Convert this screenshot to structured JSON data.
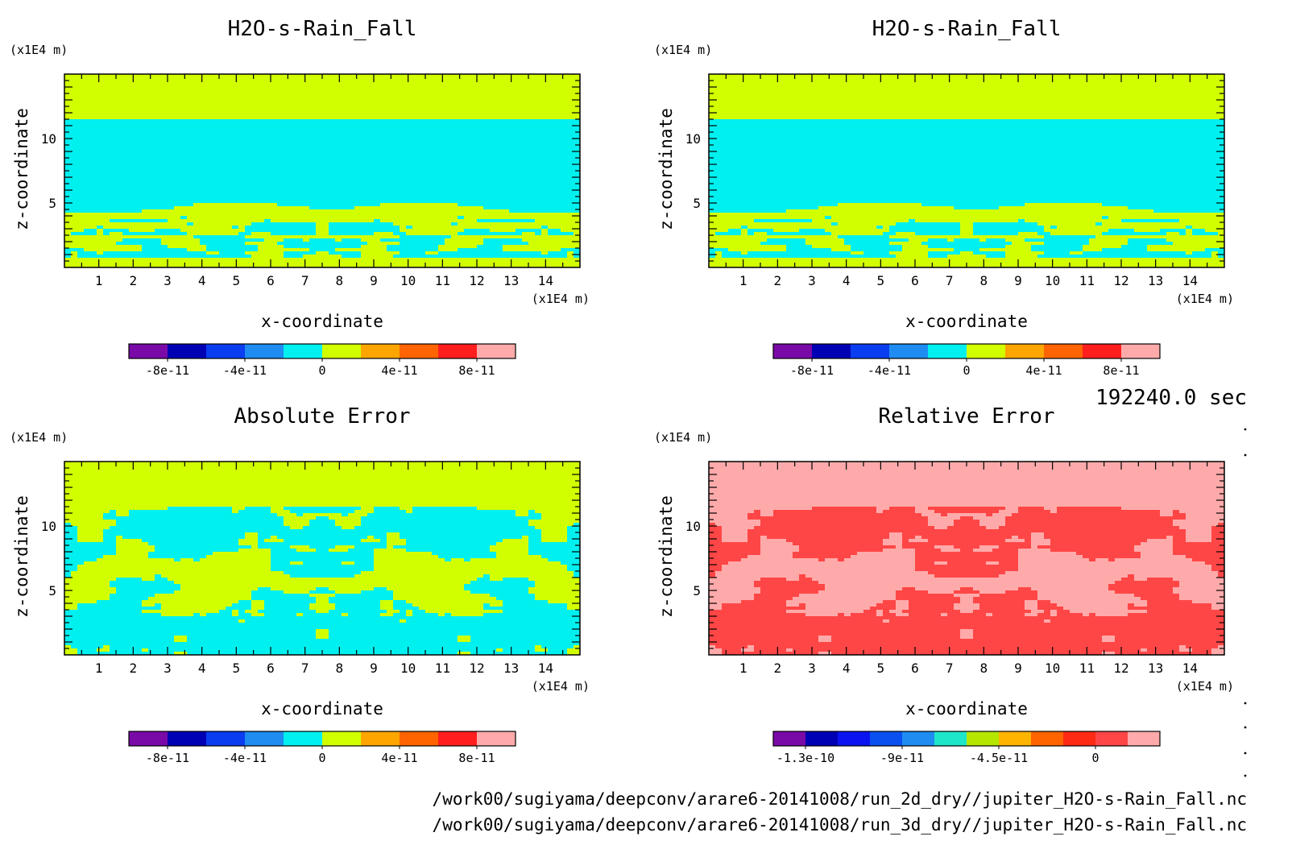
{
  "chart_data": [
    {
      "type": "heatmap",
      "title": "H2O-s-Rain_Fall",
      "xlabel": "x-coordinate",
      "ylabel": "z-coordinate",
      "x_unit": "(x1E4 m)",
      "y_unit": "(x1E4 m)",
      "xlim": [
        0,
        15
      ],
      "ylim": [
        0,
        15
      ],
      "xticks": [
        "1",
        "2",
        "3",
        "4",
        "5",
        "6",
        "7",
        "8",
        "9",
        "10",
        "11",
        "12",
        "13",
        "14"
      ],
      "yticks": [
        "5",
        "10"
      ],
      "pattern": "field",
      "colorbar": {
        "colors": [
          "#7a0aa8",
          "#0000b4",
          "#0a3cf0",
          "#1e8cf0",
          "#00f0f0",
          "#d2ff00",
          "#ffa500",
          "#ff6400",
          "#ff1e1e",
          "#ffaaaa"
        ],
        "labels": [
          "-8e-11",
          "-4e-11",
          "0",
          "4e-11",
          "8e-11"
        ]
      }
    },
    {
      "type": "heatmap",
      "title": "H2O-s-Rain_Fall",
      "xlabel": "x-coordinate",
      "ylabel": "z-coordinate",
      "x_unit": "(x1E4 m)",
      "y_unit": "(x1E4 m)",
      "xlim": [
        0,
        15
      ],
      "ylim": [
        0,
        15
      ],
      "xticks": [
        "1",
        "2",
        "3",
        "4",
        "5",
        "6",
        "7",
        "8",
        "9",
        "10",
        "11",
        "12",
        "13",
        "14"
      ],
      "yticks": [
        "5",
        "10"
      ],
      "pattern": "field",
      "colorbar": {
        "colors": [
          "#7a0aa8",
          "#0000b4",
          "#0a3cf0",
          "#1e8cf0",
          "#00f0f0",
          "#d2ff00",
          "#ffa500",
          "#ff6400",
          "#ff1e1e",
          "#ffaaaa"
        ],
        "labels": [
          "-8e-11",
          "-4e-11",
          "0",
          "4e-11",
          "8e-11"
        ]
      }
    },
    {
      "type": "heatmap",
      "title": "Absolute Error",
      "xlabel": "x-coordinate",
      "ylabel": "z-coordinate",
      "x_unit": "(x1E4 m)",
      "y_unit": "(x1E4 m)",
      "xlim": [
        0,
        15
      ],
      "ylim": [
        0,
        15
      ],
      "xticks": [
        "1",
        "2",
        "3",
        "4",
        "5",
        "6",
        "7",
        "8",
        "9",
        "10",
        "11",
        "12",
        "13",
        "14"
      ],
      "yticks": [
        "5",
        "10"
      ],
      "pattern": "error",
      "colorbar": {
        "colors": [
          "#7a0aa8",
          "#0000b4",
          "#0a3cf0",
          "#1e8cf0",
          "#00f0f0",
          "#d2ff00",
          "#ffa500",
          "#ff6400",
          "#ff1e1e",
          "#ffaaaa"
        ],
        "labels": [
          "-8e-11",
          "-4e-11",
          "0",
          "4e-11",
          "8e-11"
        ]
      }
    },
    {
      "type": "heatmap",
      "title": "Relative Error",
      "xlabel": "x-coordinate",
      "ylabel": "z-coordinate",
      "x_unit": "(x1E4 m)",
      "y_unit": "(x1E4 m)",
      "xlim": [
        0,
        15
      ],
      "ylim": [
        0,
        15
      ],
      "xticks": [
        "1",
        "2",
        "3",
        "4",
        "5",
        "6",
        "7",
        "8",
        "9",
        "10",
        "11",
        "12",
        "13",
        "14"
      ],
      "yticks": [
        "5",
        "10"
      ],
      "pattern": "relerror",
      "colorbar": {
        "colors": [
          "#7a0aa8",
          "#0000b4",
          "#0a14f0",
          "#0a50f0",
          "#1e8cf0",
          "#1ee6c8",
          "#b4e600",
          "#ffb400",
          "#ff6400",
          "#ff2a14",
          "#ff4646",
          "#ffaaaa"
        ],
        "labels": [
          "-1.3e-10",
          "-9e-11",
          "-4.5e-11",
          "0"
        ]
      }
    }
  ],
  "time_label": "192240.0 sec",
  "footer": {
    "line1": "/work00/sugiyama/deepconv/arare6-20141008/run_2d_dry//jupiter_H2O-s-Rain_Fall.nc",
    "line2": "/work00/sugiyama/deepconv/arare6-20141008/run_3d_dry//jupiter_H2O-s-Rain_Fall.nc"
  }
}
